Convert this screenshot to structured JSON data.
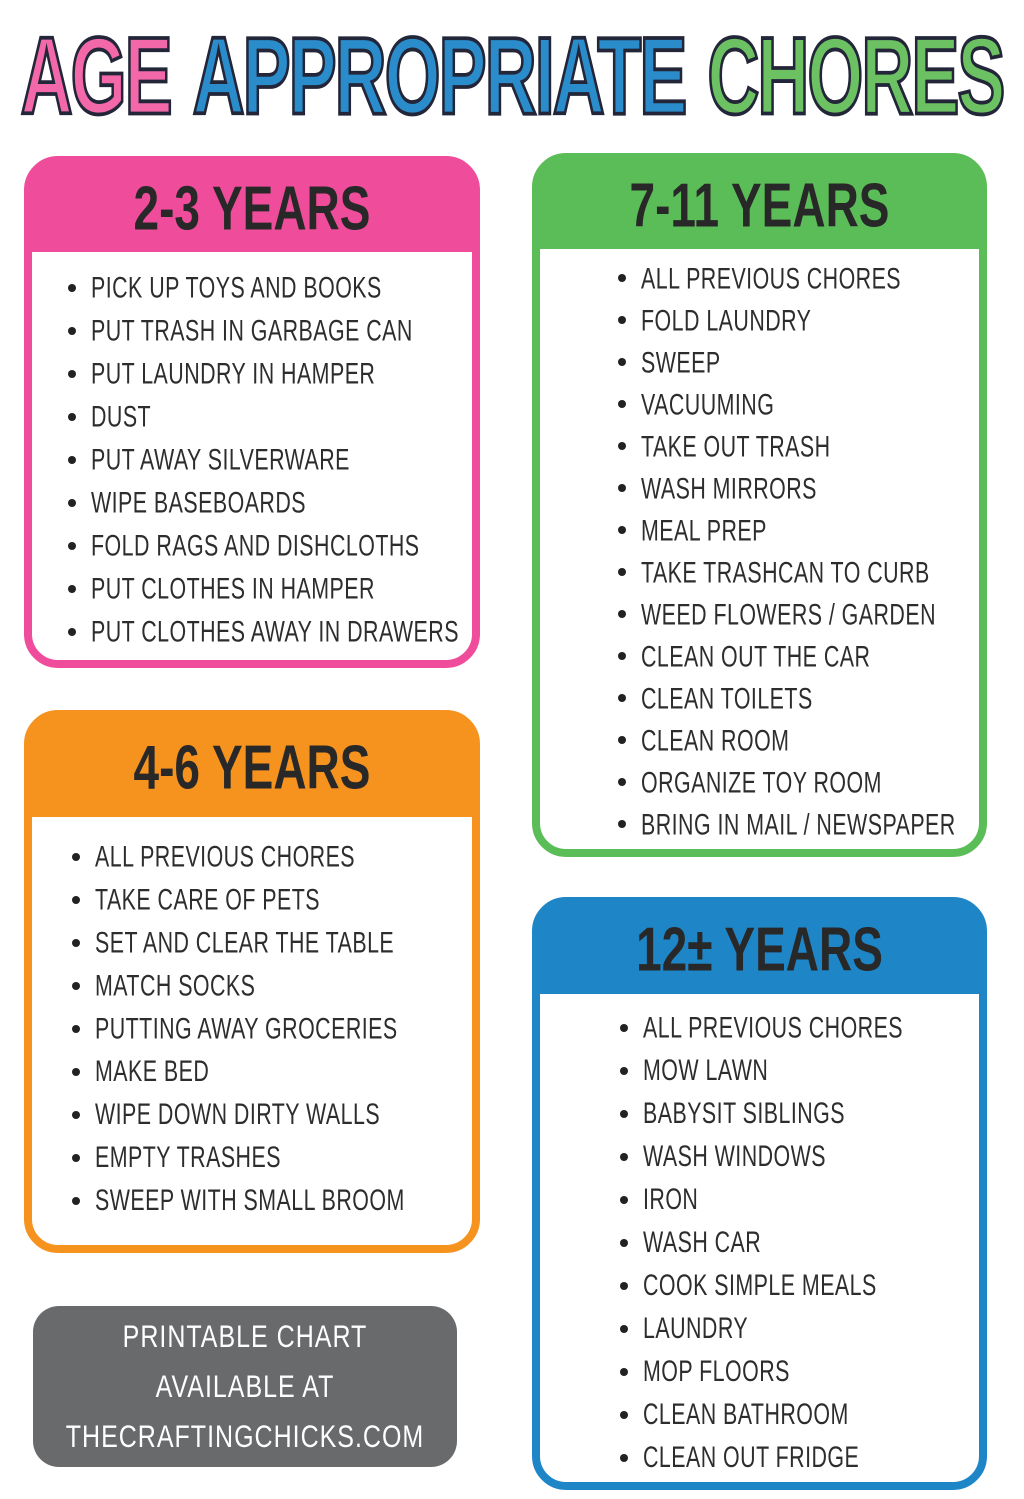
{
  "title": {
    "words": [
      {
        "text": "AGE",
        "color": "#f268a8"
      },
      {
        "text": "APPROPRIATE",
        "color": "#2b8ccb"
      },
      {
        "text": "CHORES",
        "color": "#6cc163"
      }
    ],
    "outline_color": "#222638"
  },
  "cards": [
    {
      "label": "2-3 YEARS",
      "color": "#ef4d9b",
      "items": [
        "PICK UP TOYS AND BOOKS",
        "PUT TRASH IN GARBAGE CAN",
        "PUT LAUNDRY IN HAMPER",
        "DUST",
        "PUT AWAY SILVERWARE",
        "WIPE BASEBOARDS",
        "FOLD RAGS AND DISHCLOTHS",
        "PUT CLOTHES IN HAMPER",
        "PUT CLOTHES AWAY IN DRAWERS"
      ]
    },
    {
      "label": "7-11 YEARS",
      "color": "#5bbd58",
      "items": [
        "ALL PREVIOUS CHORES",
        "FOLD LAUNDRY",
        "SWEEP",
        "VACUUMING",
        "TAKE OUT TRASH",
        "WASH MIRRORS",
        "MEAL PREP",
        "TAKE TRASHCAN TO CURB",
        "WEED FLOWERS / GARDEN",
        "CLEAN OUT THE CAR",
        "CLEAN TOILETS",
        "CLEAN ROOM",
        "ORGANIZE TOY ROOM",
        "BRING IN MAIL / NEWSPAPER"
      ]
    },
    {
      "label": "4-6 YEARS",
      "color": "#f6921e",
      "items": [
        "ALL PREVIOUS CHORES",
        "TAKE CARE OF PETS",
        "SET AND CLEAR THE TABLE",
        "MATCH SOCKS",
        "PUTTING AWAY GROCERIES",
        "MAKE BED",
        "WIPE DOWN DIRTY WALLS",
        "EMPTY TRASHES",
        "SWEEP WITH SMALL BROOM"
      ]
    },
    {
      "label": "12± YEARS",
      "color": "#1e86c7",
      "items": [
        "ALL PREVIOUS CHORES",
        "MOW LAWN",
        "BABYSIT SIBLINGS",
        "WASH WINDOWS",
        "IRON",
        "WASH CAR",
        "COOK SIMPLE MEALS",
        "LAUNDRY",
        "MOP FLOORS",
        "CLEAN BATHROOM",
        "CLEAN OUT FRIDGE"
      ]
    }
  ],
  "footer": {
    "background": "#696a6c",
    "lines": [
      "PRINTABLE CHART",
      "AVAILABLE AT",
      "THECRAFTINGCHICKS.COM"
    ]
  }
}
